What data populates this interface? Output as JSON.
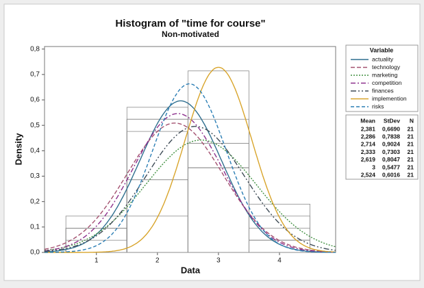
{
  "chart_data": {
    "type": "histogram",
    "title": "Histogram of \"time for course\"",
    "subtitle": "Non-motivated",
    "x_label": "Data",
    "y_label": "Density",
    "legend_title": "Variable",
    "stats_headers": [
      "Mean",
      "StDev",
      "N"
    ],
    "bins": [
      0.5,
      1.5,
      2.5,
      3.5,
      4.5
    ],
    "xlim": [
      0.15,
      4.92
    ],
    "ylim": [
      0,
      0.81
    ],
    "xticks": [
      1,
      2,
      3,
      4
    ],
    "yticks": [
      {
        "value": 0,
        "label": "0,0"
      },
      {
        "value": 0.1,
        "label": "0,1"
      },
      {
        "value": 0.2,
        "label": "0,2"
      },
      {
        "value": 0.3,
        "label": "0,3"
      },
      {
        "value": 0.4,
        "label": "0,4"
      },
      {
        "value": 0.5,
        "label": "0,5"
      },
      {
        "value": 0.6,
        "label": "0,6"
      },
      {
        "value": 0.7,
        "label": "0,7"
      },
      {
        "value": 0.8,
        "label": "0,8"
      }
    ],
    "bar_color": "#8c8c8c",
    "series": [
      {
        "name": "actuality",
        "color": "#2f6f8f",
        "dash": "",
        "values": [
          0.048,
          0.571,
          0.333,
          0.048
        ],
        "mean": 2.381,
        "mean_label": "2,381",
        "stdev": 0.669,
        "stdev_label": "0,6690",
        "n": 21
      },
      {
        "name": "technology",
        "color": "#a3506f",
        "dash": "6 3",
        "values": [
          0.143,
          0.476,
          0.333,
          0.048
        ],
        "mean": 2.286,
        "mean_label": "2,286",
        "stdev": 0.7838,
        "stdev_label": "0,7838",
        "n": 21
      },
      {
        "name": "marketing",
        "color": "#3f8f3f",
        "dash": "2 2",
        "values": [
          0.095,
          0.286,
          0.429,
          0.19
        ],
        "mean": 2.714,
        "mean_label": "2,714",
        "stdev": 0.9024,
        "stdev_label": "0,9024",
        "n": 21
      },
      {
        "name": "competition",
        "color": "#8c2f8c",
        "dash": "7 3 2 3",
        "values": [
          0.095,
          0.524,
          0.333,
          0.048
        ],
        "mean": 2.333,
        "mean_label": "2,333",
        "stdev": 0.7303,
        "stdev_label": "0,7303",
        "n": 21
      },
      {
        "name": "finances",
        "color": "#3d4a55",
        "dash": "8 3 2 3 2 3",
        "values": [
          0.095,
          0.286,
          0.524,
          0.095
        ],
        "mean": 2.619,
        "mean_label": "2,619",
        "stdev": 0.8047,
        "stdev_label": "0,8047",
        "n": 21
      },
      {
        "name": "implemention",
        "color": "#d8a42a",
        "dash": "",
        "values": [
          0,
          0.143,
          0.714,
          0.143
        ],
        "mean": 3,
        "mean_label": "3",
        "stdev": 0.5477,
        "stdev_label": "0,5477",
        "n": 21
      },
      {
        "name": "risks",
        "color": "#2a7db4",
        "dash": "5 3",
        "values": [
          0,
          0.524,
          0.429,
          0.048
        ],
        "mean": 2.524,
        "mean_label": "2,524",
        "stdev": 0.6016,
        "stdev_label": "0,6016",
        "n": 21
      }
    ]
  }
}
